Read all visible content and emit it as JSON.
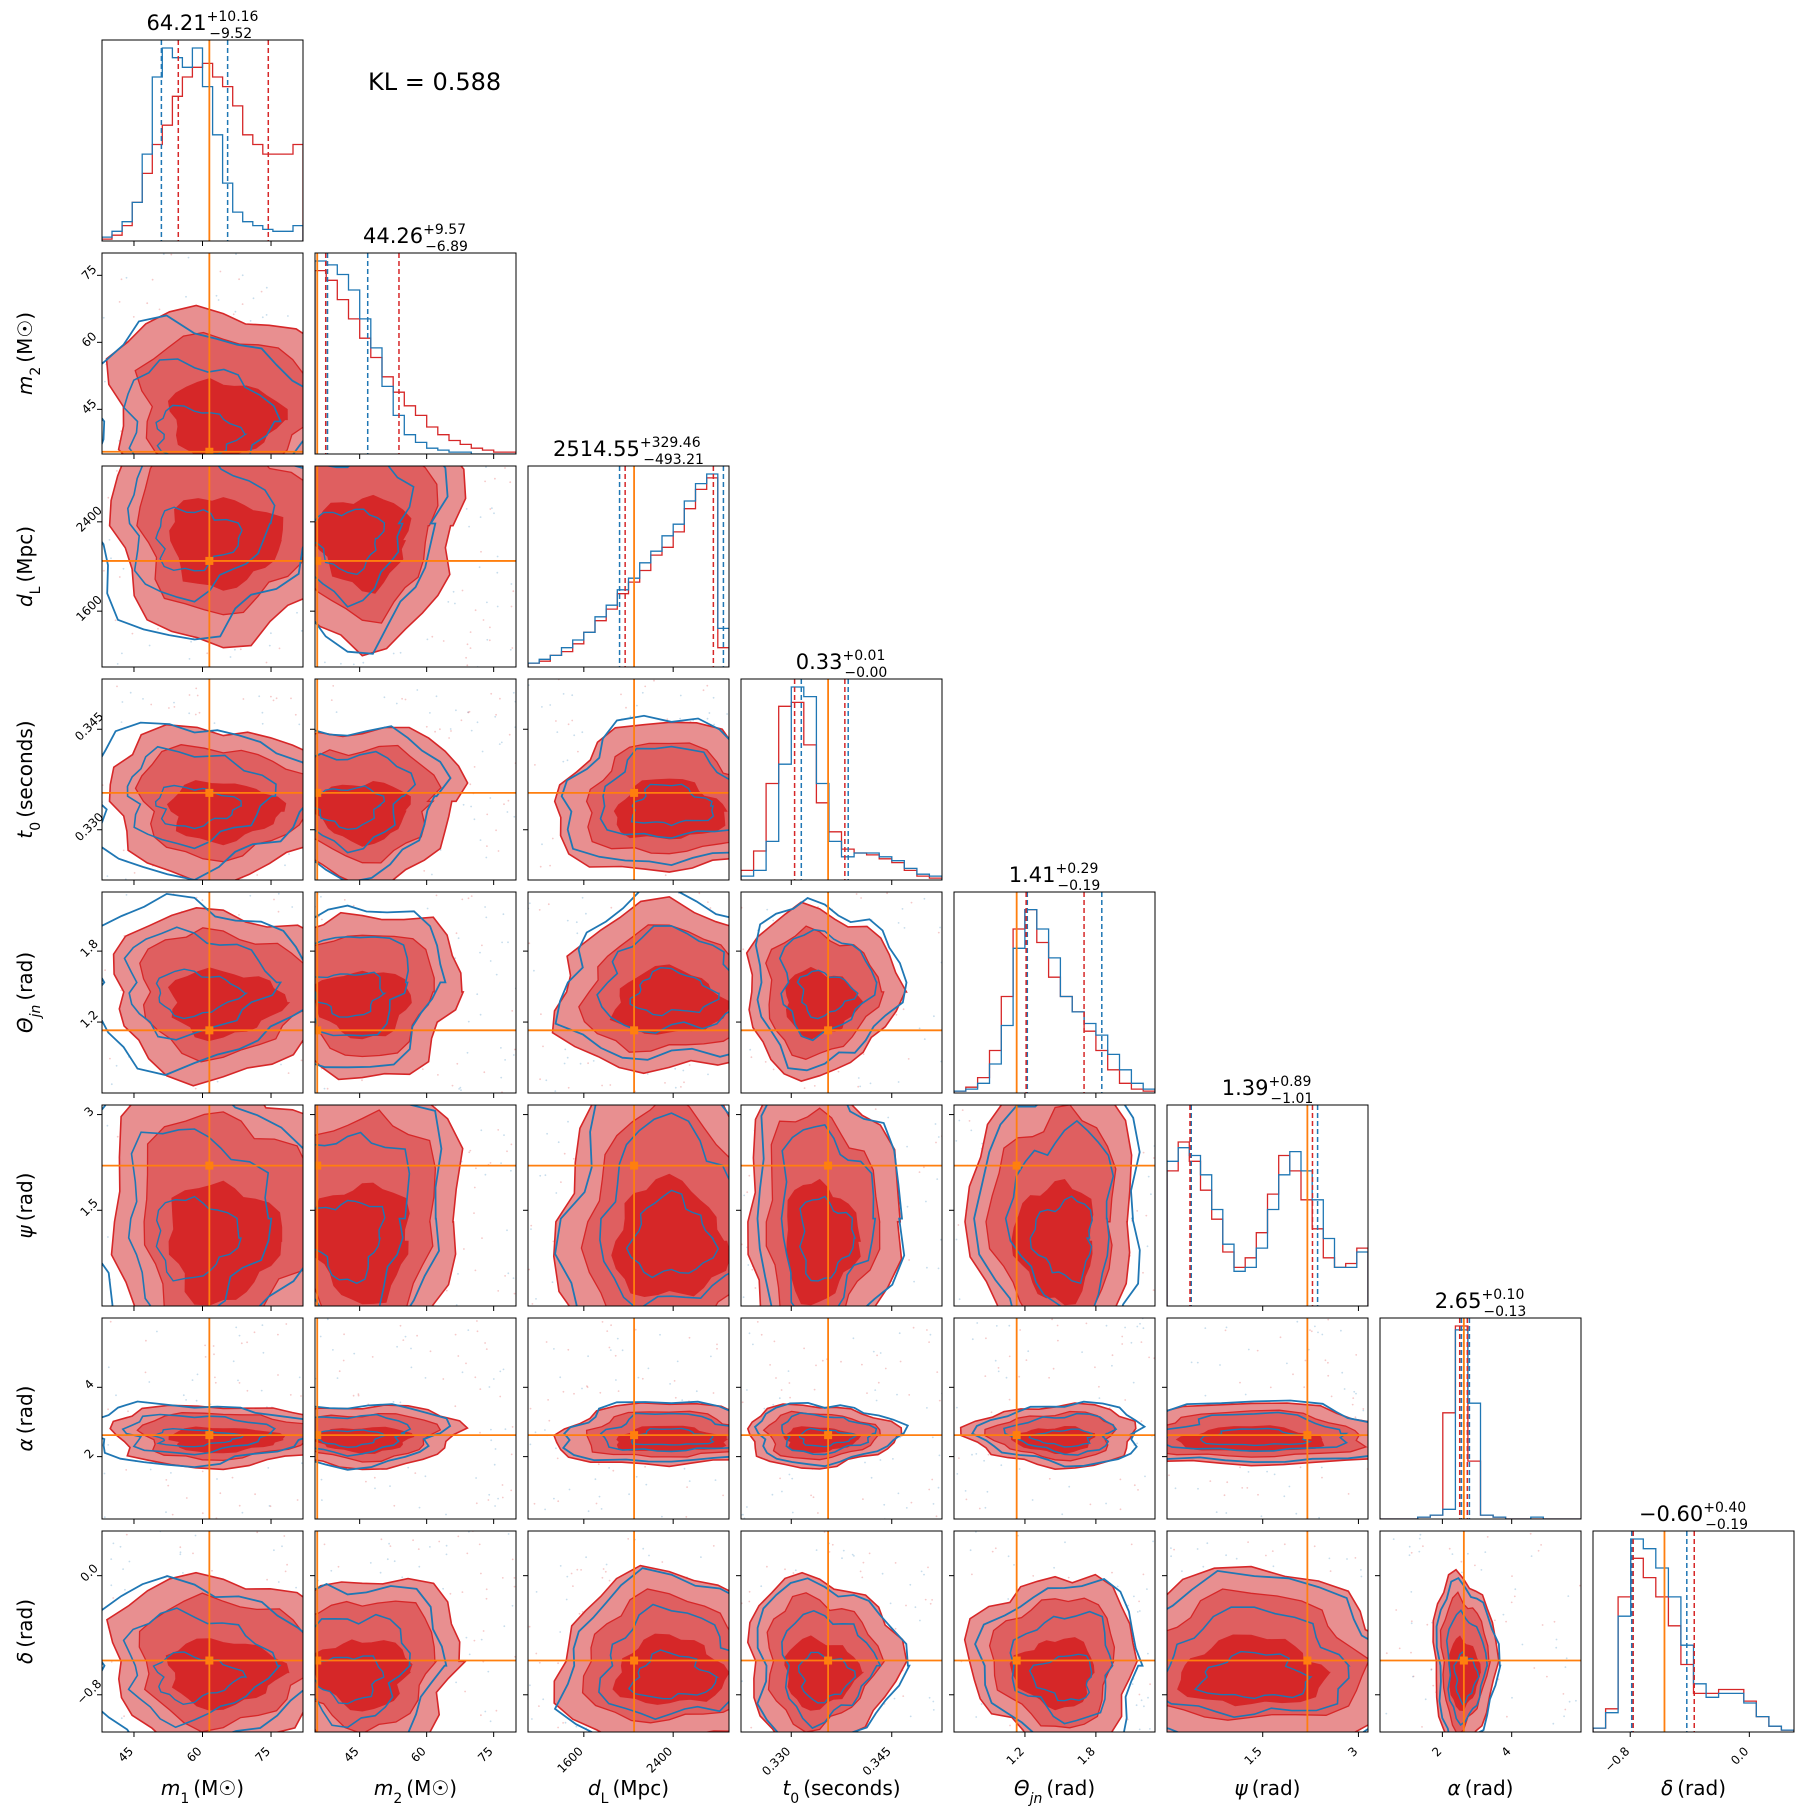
{
  "figure": {
    "kl_label": "KL = 0.588",
    "colors": {
      "blue": "#1f77b4",
      "red": "#d62728",
      "red_light": "#e88f90",
      "red_mid": "#df5f60",
      "truth": "#ff7f0e"
    }
  },
  "chart_data": {
    "type": "corner",
    "params": [
      {
        "label_sym": "m",
        "label_sub": "1",
        "label_unit": "(M☉)",
        "range": [
          38,
          82
        ],
        "ticks": [
          45,
          60,
          75
        ],
        "truth": 61.5,
        "title": {
          "value": "64.21",
          "plus": "+10.16",
          "minus": "−9.52"
        },
        "quantiles_blue": [
          51.0,
          65.5
        ],
        "quantiles_red": [
          54.7,
          74.4
        ]
      },
      {
        "label_sym": "m",
        "label_sub": "2",
        "label_unit": "(M☉)",
        "range": [
          35,
          80
        ],
        "ticks": [
          45,
          60,
          75
        ],
        "truth": 35.5,
        "title": {
          "value": "44.26",
          "plus": "+9.57",
          "minus": "−6.89"
        },
        "quantiles_blue": [
          37.8,
          46.8
        ],
        "quantiles_red": [
          37.4,
          53.8
        ]
      },
      {
        "label_sym": "d",
        "label_sub": "L",
        "label_unit": "(Mpc)",
        "range": [
          1100,
          2900
        ],
        "ticks": [
          1600,
          2400
        ],
        "truth": 2050,
        "title": {
          "value": "2514.55",
          "plus": "+329.46",
          "minus": "−493.21"
        },
        "quantiles_blue": [
          1920,
          2850
        ],
        "quantiles_red": [
          1970,
          2760
        ]
      },
      {
        "label_sym": "t",
        "label_sub": "0",
        "label_unit": "(seconds)",
        "range": [
          0.3225,
          0.3525
        ],
        "ticks": [
          0.33,
          0.345
        ],
        "tick_labels": [
          "0.330",
          "0.345"
        ],
        "truth": 0.3355,
        "title": {
          "value": "0.33",
          "plus": "+0.01",
          "minus": "−0.00"
        },
        "quantiles_blue": [
          0.3315,
          0.3385
        ],
        "quantiles_red": [
          0.3305,
          0.338
        ]
      },
      {
        "label_sym": "Θ",
        "label_sub": "jn",
        "label_unit": "(rad)",
        "range": [
          0.6,
          2.3
        ],
        "ticks": [
          1.2,
          1.8
        ],
        "truth": 1.13,
        "title": {
          "value": "1.41",
          "plus": "+0.29",
          "minus": "−0.19"
        },
        "quantiles_blue": [
          1.22,
          1.85
        ],
        "quantiles_red": [
          1.21,
          1.7
        ]
      },
      {
        "label_sym": "ψ",
        "label_sub": "",
        "label_unit": "(rad)",
        "range": [
          0.0,
          3.15
        ],
        "ticks": [
          1.5,
          3.0
        ],
        "truth": 2.2,
        "title": {
          "value": "1.39",
          "plus": "+0.89",
          "minus": "−1.01"
        },
        "quantiles_blue": [
          0.38,
          2.36
        ],
        "quantiles_red": [
          0.36,
          2.28
        ]
      },
      {
        "label_sym": "α",
        "label_sub": "",
        "label_unit": "(rad)",
        "range": [
          0.2,
          6.0
        ],
        "ticks": [
          2,
          4
        ],
        "truth": 2.62,
        "title": {
          "value": "2.65",
          "plus": "+0.10",
          "minus": "−0.13"
        },
        "quantiles_blue": [
          2.55,
          2.78
        ],
        "quantiles_red": [
          2.5,
          2.72
        ]
      },
      {
        "label_sym": "δ",
        "label_sub": "",
        "label_unit": "(rad)",
        "range": [
          -1.05,
          0.3
        ],
        "ticks": [
          -0.8,
          0.0
        ],
        "tick_labels": [
          "−0.8",
          "0.0"
        ],
        "truth": -0.57,
        "title": {
          "value": "−0.60",
          "plus": "+0.40",
          "minus": "−0.19"
        },
        "quantiles_blue": [
          -0.79,
          -0.42
        ],
        "quantiles_red": [
          -0.78,
          -0.37
        ]
      }
    ],
    "series": [
      {
        "color_key": "blue",
        "style": "line-contours"
      },
      {
        "color_key": "red",
        "style": "filled-contours"
      }
    ],
    "marginals": [
      {
        "param": 0,
        "blue": [
          0.02,
          0.05,
          0.1,
          0.2,
          0.45,
          0.85,
          1.0,
          0.95,
          0.9,
          1.0,
          0.8,
          0.55,
          0.3,
          0.15,
          0.1,
          0.08,
          0.06,
          0.05,
          0.05,
          0.08
        ],
        "red": [
          0.01,
          0.03,
          0.08,
          0.2,
          0.35,
          0.5,
          0.6,
          0.75,
          0.85,
          0.9,
          0.92,
          0.85,
          0.8,
          0.7,
          0.55,
          0.5,
          0.45,
          0.45,
          0.45,
          0.5
        ]
      },
      {
        "param": 1,
        "blue": [
          1.0,
          0.98,
          0.93,
          0.85,
          0.7,
          0.55,
          0.35,
          0.2,
          0.1,
          0.06,
          0.03,
          0.02,
          0.01,
          0.01,
          0.0,
          0.0,
          0.0,
          0.0
        ],
        "red": [
          0.95,
          0.9,
          0.8,
          0.7,
          0.6,
          0.5,
          0.4,
          0.32,
          0.25,
          0.2,
          0.14,
          0.1,
          0.07,
          0.05,
          0.03,
          0.02,
          0.01,
          0.01
        ]
      },
      {
        "param": 2,
        "blue": [
          0.02,
          0.04,
          0.06,
          0.1,
          0.14,
          0.18,
          0.26,
          0.32,
          0.4,
          0.46,
          0.54,
          0.6,
          0.68,
          0.74,
          0.86,
          0.95,
          1.0,
          0.2
        ],
        "red": [
          0.02,
          0.03,
          0.06,
          0.08,
          0.12,
          0.18,
          0.24,
          0.3,
          0.38,
          0.44,
          0.5,
          0.58,
          0.62,
          0.7,
          0.82,
          0.92,
          0.98,
          0.1
        ]
      },
      {
        "param": 3,
        "blue": [
          0.02,
          0.05,
          0.2,
          0.6,
          1.0,
          0.95,
          0.5,
          0.2,
          0.12,
          0.14,
          0.14,
          0.12,
          0.1,
          0.06,
          0.03,
          0.02
        ],
        "red": [
          0.05,
          0.15,
          0.5,
          0.9,
          0.92,
          0.7,
          0.4,
          0.25,
          0.16,
          0.14,
          0.13,
          0.11,
          0.09,
          0.05,
          0.02,
          0.01
        ]
      },
      {
        "param": 4,
        "blue": [
          0.01,
          0.02,
          0.05,
          0.15,
          0.35,
          0.75,
          0.95,
          0.85,
          0.7,
          0.5,
          0.42,
          0.36,
          0.3,
          0.2,
          0.12,
          0.05,
          0.02
        ],
        "red": [
          0.01,
          0.03,
          0.08,
          0.22,
          0.5,
          0.85,
          0.95,
          0.78,
          0.6,
          0.5,
          0.42,
          0.32,
          0.22,
          0.12,
          0.05,
          0.02,
          0.01
        ]
      },
      {
        "param": 5,
        "blue": [
          0.75,
          0.82,
          0.78,
          0.68,
          0.5,
          0.32,
          0.18,
          0.2,
          0.3,
          0.5,
          0.68,
          0.8,
          0.7,
          0.55,
          0.35,
          0.2,
          0.2,
          0.28
        ],
        "red": [
          0.7,
          0.85,
          0.75,
          0.6,
          0.45,
          0.28,
          0.2,
          0.25,
          0.38,
          0.58,
          0.78,
          0.7,
          0.55,
          0.4,
          0.25,
          0.2,
          0.22,
          0.3
        ]
      },
      {
        "param": 6,
        "blue": [
          0.0,
          0.0,
          0.0,
          0.01,
          0.02,
          0.05,
          0.98,
          0.6,
          0.02,
          0.01,
          0.0,
          0.0,
          0.01,
          0.0,
          0.0,
          0.0
        ],
        "red": [
          0.0,
          0.0,
          0.0,
          0.01,
          0.02,
          0.55,
          1.0,
          0.3,
          0.02,
          0.01,
          0.0,
          0.0,
          0.0,
          0.0,
          0.0,
          0.0
        ]
      },
      {
        "param": 7,
        "blue": [
          0.02,
          0.1,
          0.6,
          1.0,
          0.95,
          0.85,
          0.7,
          0.45,
          0.25,
          0.18,
          0.2,
          0.2,
          0.15,
          0.08,
          0.03,
          0.01
        ],
        "red": [
          0.02,
          0.12,
          0.7,
          0.9,
          0.8,
          0.7,
          0.55,
          0.35,
          0.2,
          0.2,
          0.22,
          0.22,
          0.16,
          0.08,
          0.03,
          0.01
        ]
      }
    ]
  }
}
